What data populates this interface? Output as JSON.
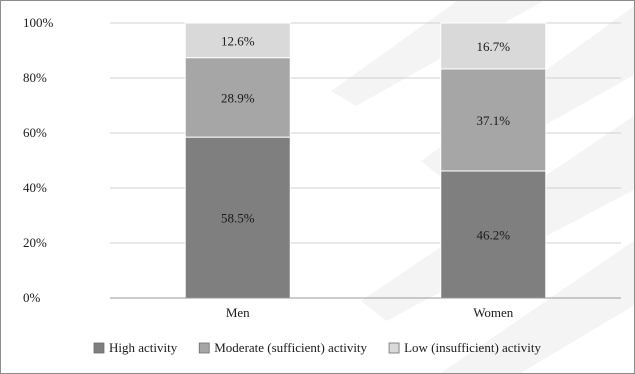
{
  "chart_data": {
    "type": "bar",
    "stacked": true,
    "categories": [
      "Men",
      "Women"
    ],
    "series": [
      {
        "name": "High activity",
        "values": [
          58.5,
          46.2
        ],
        "labels": [
          "58.5%",
          "46.2%"
        ],
        "color": "#7f7f7f"
      },
      {
        "name": "Moderate (sufficient) activity",
        "values": [
          28.9,
          37.1
        ],
        "labels": [
          "28.9%",
          "37.1%"
        ],
        "color": "#a6a6a6"
      },
      {
        "name": "Low (insufficient) activity",
        "values": [
          12.6,
          16.7
        ],
        "labels": [
          "12.6%",
          "16.7%"
        ],
        "color": "#d9d9d9"
      }
    ],
    "ylim": [
      0,
      100
    ],
    "yticks": [
      "0%",
      "20%",
      "40%",
      "60%",
      "80%",
      "100%"
    ],
    "grid": true,
    "legend_position": "bottom"
  }
}
